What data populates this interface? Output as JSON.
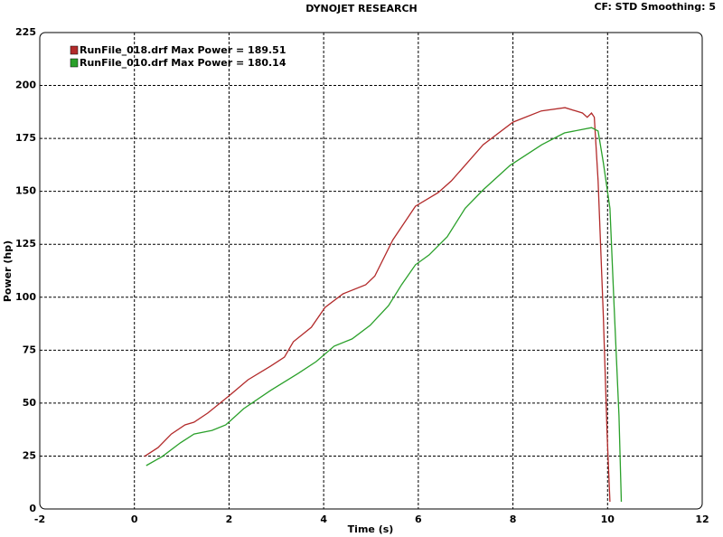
{
  "chart_data": {
    "type": "line",
    "title": "DYNOJET RESEARCH",
    "annotation": "CF: STD  Smoothing: 5",
    "x_label": "Time (s)",
    "y_label": "Power (hp)",
    "xlim": [
      -2,
      12
    ],
    "xticks": [
      -2,
      0,
      2,
      4,
      6,
      8,
      10,
      12
    ],
    "ylim": [
      0,
      225
    ],
    "yticks": [
      0,
      25,
      50,
      75,
      100,
      125,
      150,
      175,
      200,
      225
    ],
    "grid": true,
    "legend": "top-left",
    "series": [
      {
        "name": "RunFile_018.drf Max Power = 189.51",
        "color": "#b22a2a",
        "x": [
          0.21,
          0.5,
          0.78,
          1.07,
          1.26,
          1.55,
          2,
          2.4,
          2.88,
          3.17,
          3.36,
          3.74,
          4.03,
          4.41,
          4.89,
          5.08,
          5.46,
          5.94,
          6.42,
          6.7,
          7.37,
          8,
          8.6,
          9.1,
          9.47,
          9.57,
          9.66,
          9.72,
          9.8,
          9.91,
          9.99,
          10.05
        ],
        "values": [
          24.8,
          29,
          35.4,
          39.7,
          41,
          45.3,
          53.4,
          61,
          67.5,
          71.7,
          79,
          85.8,
          95.2,
          101.6,
          105.9,
          110,
          127,
          143,
          149.4,
          155,
          172,
          182.7,
          188,
          189.5,
          187,
          185,
          187,
          185,
          155,
          91,
          35,
          3.4
        ]
      },
      {
        "name": "RunFile_010.drf Max Power = 180.14",
        "color": "#2aa02a",
        "x": [
          0.25,
          0.59,
          0.97,
          1.26,
          1.64,
          1.93,
          2.31,
          2.88,
          3.46,
          3.84,
          4.22,
          4.6,
          4.98,
          5.37,
          5.65,
          5.94,
          6.23,
          6.61,
          6.99,
          7.37,
          7.94,
          8.61,
          9.09,
          9.66,
          9.8,
          9.91,
          10.05,
          10.14,
          10.24,
          10.29
        ],
        "values": [
          20.5,
          24.8,
          31.2,
          35.4,
          37.1,
          39.7,
          47.4,
          56,
          64,
          69.6,
          76.9,
          80.3,
          86.7,
          96,
          106,
          115.3,
          120,
          128.5,
          142,
          150.7,
          162.3,
          172,
          177.6,
          180.1,
          178.5,
          163.5,
          142,
          95,
          44,
          3.4
        ]
      }
    ]
  }
}
